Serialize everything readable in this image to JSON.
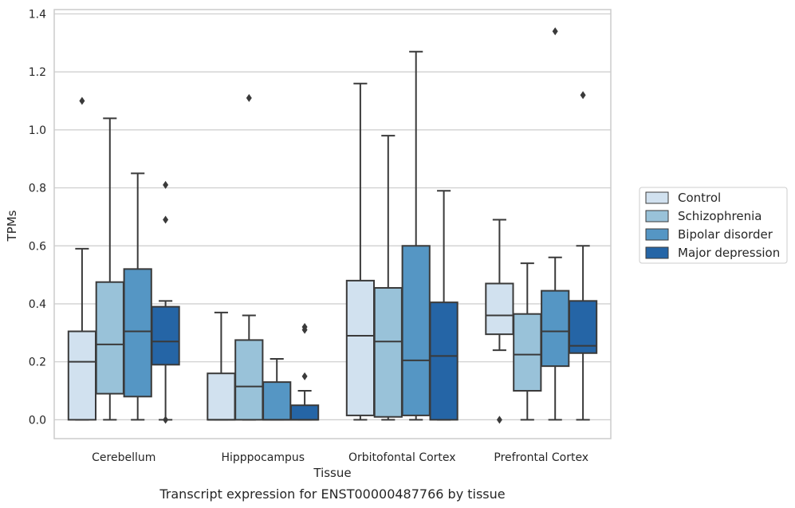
{
  "caption": "Transcript expression for ENST00000487766 by tissue",
  "chart_data": {
    "type": "box",
    "xlabel": "Tissue",
    "ylabel": "TPMs",
    "ylim": [
      -0.065,
      1.415
    ],
    "yticks": [
      0.0,
      0.2,
      0.4,
      0.6,
      0.8,
      1.0,
      1.2,
      1.4
    ],
    "ytick_labels": [
      "0.0",
      "0.2",
      "0.4",
      "0.6",
      "0.8",
      "1.0",
      "1.2",
      "1.4"
    ],
    "grid": "horizontal",
    "legend_position": "right-outside",
    "categories": [
      "Cerebellum",
      "Hipppocampus",
      "Orbitofontal Cortex",
      "Prefrontal Cortex"
    ],
    "series": [
      {
        "name": "Control",
        "color": "#d1e1ef",
        "boxes": [
          {
            "whislo": 0.0,
            "q1": 0.0,
            "med": 0.2,
            "q3": 0.305,
            "whishi": 0.59,
            "fliers": [
              1.1
            ]
          },
          {
            "whislo": 0.0,
            "q1": 0.0,
            "med": 0.0,
            "q3": 0.16,
            "whishi": 0.37,
            "fliers": []
          },
          {
            "whislo": 0.0,
            "q1": 0.015,
            "med": 0.29,
            "q3": 0.48,
            "whishi": 1.16,
            "fliers": []
          },
          {
            "whislo": 0.24,
            "q1": 0.295,
            "med": 0.36,
            "q3": 0.47,
            "whishi": 0.69,
            "fliers": [
              0.0
            ]
          }
        ]
      },
      {
        "name": "Schizophrenia",
        "color": "#99c2d9",
        "boxes": [
          {
            "whislo": 0.0,
            "q1": 0.09,
            "med": 0.26,
            "q3": 0.475,
            "whishi": 1.04,
            "fliers": []
          },
          {
            "whislo": 0.0,
            "q1": 0.0,
            "med": 0.115,
            "q3": 0.275,
            "whishi": 0.36,
            "fliers": [
              1.11
            ]
          },
          {
            "whislo": 0.0,
            "q1": 0.01,
            "med": 0.27,
            "q3": 0.455,
            "whishi": 0.98,
            "fliers": []
          },
          {
            "whislo": 0.0,
            "q1": 0.1,
            "med": 0.225,
            "q3": 0.365,
            "whishi": 0.54,
            "fliers": []
          }
        ]
      },
      {
        "name": "Bipolar disorder",
        "color": "#5596c4",
        "boxes": [
          {
            "whislo": 0.0,
            "q1": 0.08,
            "med": 0.305,
            "q3": 0.52,
            "whishi": 0.85,
            "fliers": []
          },
          {
            "whislo": 0.0,
            "q1": 0.0,
            "med": 0.0,
            "q3": 0.13,
            "whishi": 0.21,
            "fliers": []
          },
          {
            "whislo": 0.0,
            "q1": 0.015,
            "med": 0.205,
            "q3": 0.6,
            "whishi": 1.27,
            "fliers": []
          },
          {
            "whislo": 0.0,
            "q1": 0.185,
            "med": 0.305,
            "q3": 0.445,
            "whishi": 0.56,
            "fliers": [
              1.34
            ]
          }
        ]
      },
      {
        "name": "Major depression",
        "color": "#2565a6",
        "boxes": [
          {
            "whislo": 0.0,
            "q1": 0.19,
            "med": 0.27,
            "q3": 0.39,
            "whishi": 0.41,
            "fliers": [
              0.0,
              0.69,
              0.81
            ]
          },
          {
            "whislo": 0.0,
            "q1": 0.0,
            "med": 0.0,
            "q3": 0.05,
            "whishi": 0.1,
            "fliers": [
              0.15,
              0.31,
              0.32
            ]
          },
          {
            "whislo": 0.0,
            "q1": 0.0,
            "med": 0.22,
            "q3": 0.405,
            "whishi": 0.79,
            "fliers": []
          },
          {
            "whislo": 0.0,
            "q1": 0.23,
            "med": 0.255,
            "q3": 0.41,
            "whishi": 0.6,
            "fliers": [
              1.12
            ]
          }
        ]
      }
    ]
  }
}
